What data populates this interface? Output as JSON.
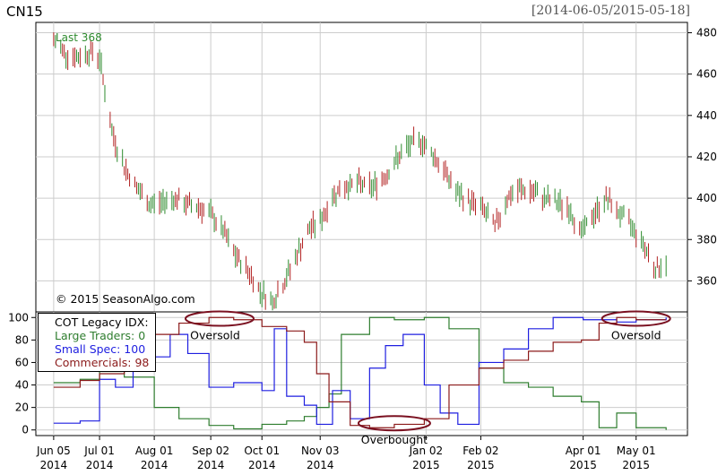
{
  "header": {
    "symbol": "CN15",
    "date_range": "[2014-06-05/2015-05-18]"
  },
  "colors": {
    "up_bar": "#2e8b2e",
    "down_bar": "#b22222",
    "large_traders": "#2e7d2e",
    "small_spec": "#1f1fe0",
    "commercials": "#8b1a1a",
    "annotation": "#7a1020",
    "grid": "#cccccc"
  },
  "chart_data": [
    {
      "type": "line",
      "title": "CN15",
      "subtitle": "[2014-06-05/2015-05-18]",
      "annotation_last": "Last 368",
      "copyright": "© 2015 SeasonAlgo.com",
      "ylim": [
        345,
        485
      ],
      "yticks": [
        360,
        380,
        400,
        420,
        440,
        460,
        480
      ],
      "series": [
        {
          "name": "price",
          "x": [
            "2014-06-05",
            "2014-06-12",
            "2014-06-19",
            "2014-06-26",
            "2014-07-01",
            "2014-07-08",
            "2014-07-15",
            "2014-07-22",
            "2014-07-29",
            "2014-08-05",
            "2014-08-12",
            "2014-08-19",
            "2014-08-26",
            "2014-09-02",
            "2014-09-09",
            "2014-09-16",
            "2014-09-23",
            "2014-09-30",
            "2014-10-07",
            "2014-10-14",
            "2014-10-21",
            "2014-10-28",
            "2014-11-04",
            "2014-11-11",
            "2014-11-18",
            "2014-11-25",
            "2014-12-02",
            "2014-12-09",
            "2014-12-16",
            "2014-12-23",
            "2014-12-30",
            "2015-01-06",
            "2015-01-13",
            "2015-01-20",
            "2015-01-27",
            "2015-02-03",
            "2015-02-10",
            "2015-02-17",
            "2015-02-24",
            "2015-03-03",
            "2015-03-10",
            "2015-03-17",
            "2015-03-24",
            "2015-03-31",
            "2015-04-07",
            "2015-04-14",
            "2015-04-21",
            "2015-04-28",
            "2015-05-05",
            "2015-05-12",
            "2015-05-18"
          ],
          "values": [
            476,
            470,
            468,
            471,
            468,
            432,
            415,
            405,
            397,
            398,
            400,
            397,
            396,
            392,
            384,
            372,
            365,
            355,
            350,
            360,
            373,
            385,
            390,
            402,
            406,
            407,
            405,
            410,
            418,
            425,
            428,
            421,
            412,
            402,
            398,
            395,
            386,
            400,
            404,
            403,
            400,
            398,
            395,
            383,
            392,
            400,
            393,
            387,
            378,
            366,
            368
          ]
        }
      ]
    },
    {
      "type": "line",
      "title": "COT Legacy IDX:",
      "ylim": [
        -5,
        105
      ],
      "yticks": [
        0,
        20,
        40,
        60,
        80,
        100
      ],
      "x_tick_labels": [
        {
          "date": "2014-06-05",
          "line1": "Jun 05",
          "line2": "2014"
        },
        {
          "date": "2014-07-01",
          "line1": "Jul 01",
          "line2": "2014"
        },
        {
          "date": "2014-08-01",
          "line1": "Aug 01",
          "line2": "2014"
        },
        {
          "date": "2014-09-02",
          "line1": "Sep 02",
          "line2": "2014"
        },
        {
          "date": "2014-10-01",
          "line1": "Oct 01",
          "line2": "2014"
        },
        {
          "date": "2014-11-03",
          "line1": "Nov 03",
          "line2": "2014"
        },
        {
          "date": "2015-01-02",
          "line1": "Jan 02",
          "line2": "2015"
        },
        {
          "date": "2015-02-02",
          "line1": "Feb 02",
          "line2": "2015"
        },
        {
          "date": "2015-04-01",
          "line1": "Apr 01",
          "line2": "2015"
        },
        {
          "date": "2015-05-01",
          "line1": "May 01",
          "line2": "2015"
        }
      ],
      "legend": [
        {
          "key": "large",
          "label": "Large Traders: 0"
        },
        {
          "key": "small",
          "label": "Small Spec: 100"
        },
        {
          "key": "comm",
          "label": "Commercials: 98"
        }
      ],
      "annotations": [
        {
          "label": "Oversold",
          "date": "2014-09-07",
          "value": 99
        },
        {
          "label": "Overbought",
          "date": "2014-12-15",
          "value": 6
        },
        {
          "label": "Oversold",
          "date": "2015-05-01",
          "value": 99
        }
      ],
      "series": [
        {
          "name": "Large Traders",
          "x": [
            "2014-06-05",
            "2014-06-20",
            "2014-07-01",
            "2014-07-15",
            "2014-08-01",
            "2014-08-15",
            "2014-09-01",
            "2014-09-15",
            "2014-10-01",
            "2014-10-15",
            "2014-10-25",
            "2014-11-01",
            "2014-11-08",
            "2014-11-15",
            "2014-12-01",
            "2014-12-15",
            "2015-01-01",
            "2015-01-15",
            "2015-02-01",
            "2015-02-15",
            "2015-03-01",
            "2015-03-15",
            "2015-03-31",
            "2015-04-10",
            "2015-04-20",
            "2015-05-01",
            "2015-05-18"
          ],
          "values": [
            42,
            45,
            52,
            47,
            20,
            10,
            4,
            1,
            5,
            8,
            12,
            20,
            32,
            85,
            100,
            98,
            100,
            90,
            55,
            42,
            38,
            30,
            25,
            2,
            15,
            2,
            0
          ]
        },
        {
          "name": "Small Spec",
          "x": [
            "2014-06-05",
            "2014-06-20",
            "2014-07-01",
            "2014-07-10",
            "2014-07-20",
            "2014-08-01",
            "2014-08-10",
            "2014-08-20",
            "2014-09-01",
            "2014-09-15",
            "2014-10-01",
            "2014-10-08",
            "2014-10-15",
            "2014-10-25",
            "2014-11-01",
            "2014-11-10",
            "2014-11-20",
            "2014-12-01",
            "2014-12-10",
            "2014-12-20",
            "2015-01-01",
            "2015-01-10",
            "2015-01-20",
            "2015-02-01",
            "2015-02-15",
            "2015-03-01",
            "2015-03-15",
            "2015-04-01",
            "2015-04-20",
            "2015-05-01",
            "2015-05-18"
          ],
          "values": [
            6,
            8,
            45,
            38,
            60,
            65,
            85,
            68,
            38,
            42,
            35,
            90,
            30,
            22,
            5,
            35,
            10,
            55,
            75,
            85,
            40,
            15,
            5,
            60,
            72,
            90,
            100,
            98,
            96,
            98,
            100
          ]
        },
        {
          "name": "Commercials",
          "x": [
            "2014-06-05",
            "2014-06-20",
            "2014-07-01",
            "2014-07-15",
            "2014-08-01",
            "2014-08-15",
            "2014-09-01",
            "2014-09-15",
            "2014-10-01",
            "2014-10-15",
            "2014-10-25",
            "2014-11-01",
            "2014-11-08",
            "2014-11-20",
            "2014-12-01",
            "2014-12-15",
            "2015-01-01",
            "2015-01-15",
            "2015-02-01",
            "2015-02-15",
            "2015-03-01",
            "2015-03-15",
            "2015-03-31",
            "2015-04-10",
            "2015-04-20",
            "2015-05-01",
            "2015-05-18"
          ],
          "values": [
            38,
            44,
            50,
            55,
            85,
            95,
            100,
            98,
            92,
            88,
            78,
            50,
            25,
            4,
            2,
            5,
            10,
            40,
            55,
            62,
            70,
            78,
            80,
            95,
            100,
            98,
            98
          ]
        }
      ]
    }
  ]
}
